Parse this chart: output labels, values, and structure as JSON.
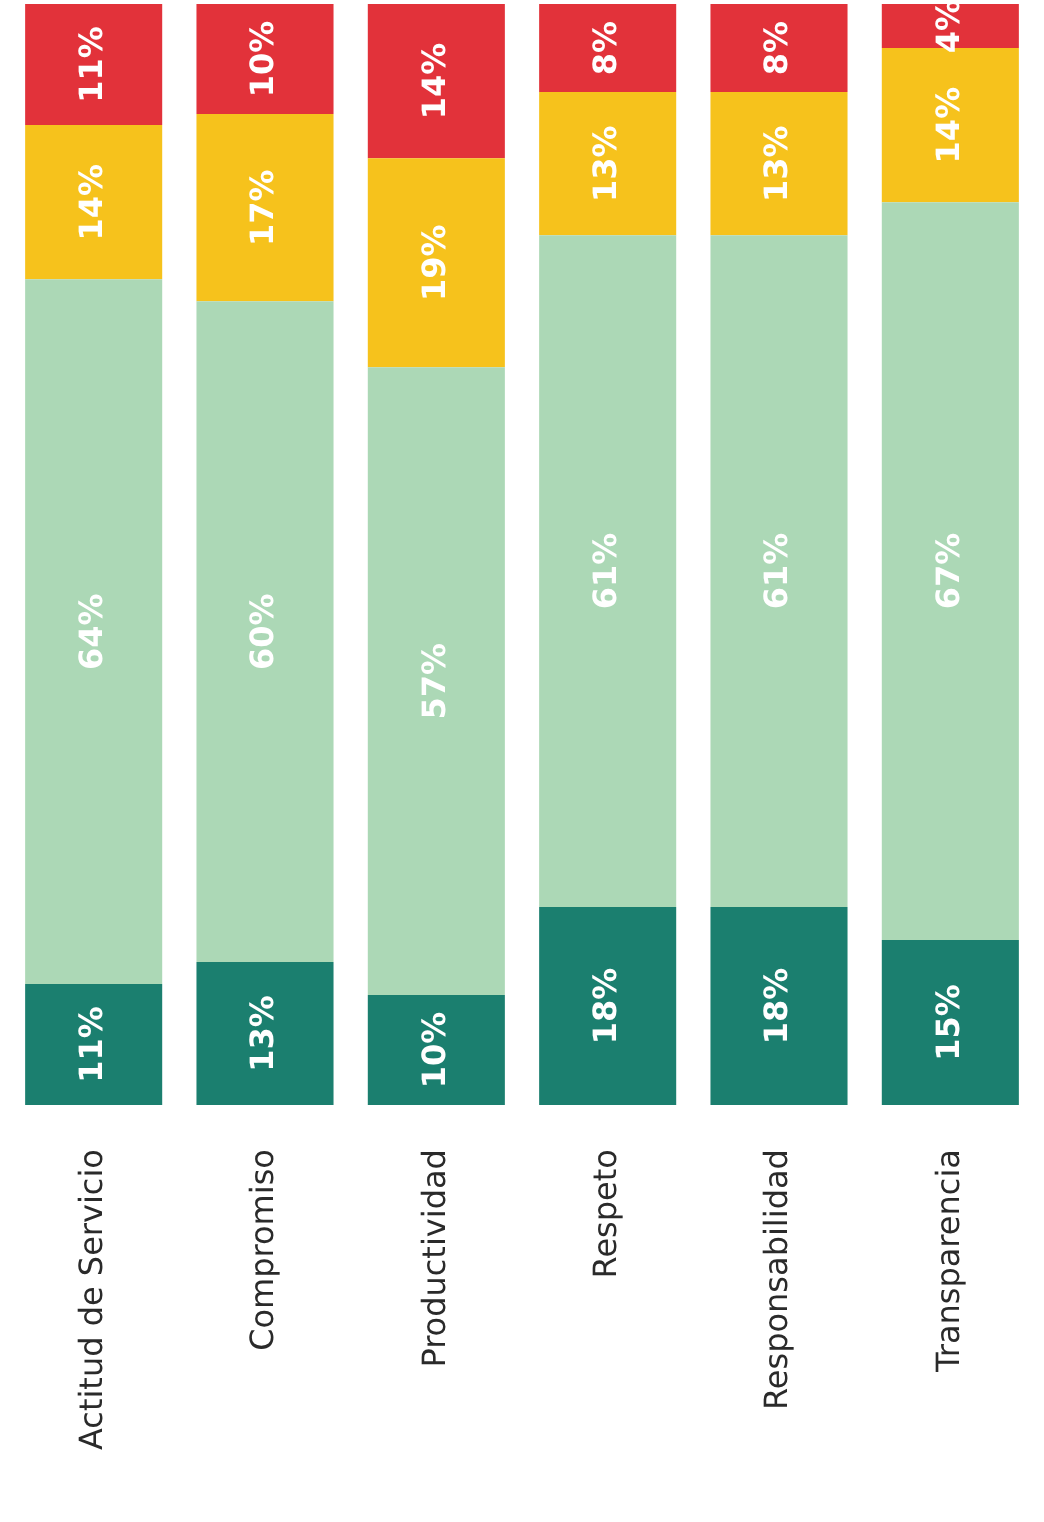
{
  "chart_data": {
    "type": "bar",
    "stacked": true,
    "tick_labels": "x",
    "categories": [
      "Actitud de Servicio",
      "Compromiso",
      "Productividad",
      "Respeto",
      "Responsabilidad",
      "Transparencia"
    ],
    "series": [
      {
        "color": "#1b7f6f",
        "values": [
          11,
          13,
          10,
          18,
          18,
          15
        ],
        "value_labels": [
          "11%",
          "13%",
          "10%",
          "18%",
          "18%",
          "15%"
        ]
      },
      {
        "color": "#acd8b6",
        "values": [
          64,
          60,
          57,
          61,
          61,
          67
        ],
        "value_labels": [
          "64%",
          "60%",
          "57%",
          "61%",
          "61%",
          "67%"
        ]
      },
      {
        "color": "#f6c21c",
        "values": [
          14,
          17,
          19,
          13,
          13,
          14
        ],
        "value_labels": [
          "14%",
          "17%",
          "19%",
          "13%",
          "13%",
          "14%"
        ]
      },
      {
        "color": "#e2323a",
        "values": [
          11,
          10,
          14,
          8,
          8,
          4
        ],
        "value_labels": [
          "11%",
          "10%",
          "14%",
          "8%",
          "8%",
          "4%"
        ]
      }
    ]
  }
}
